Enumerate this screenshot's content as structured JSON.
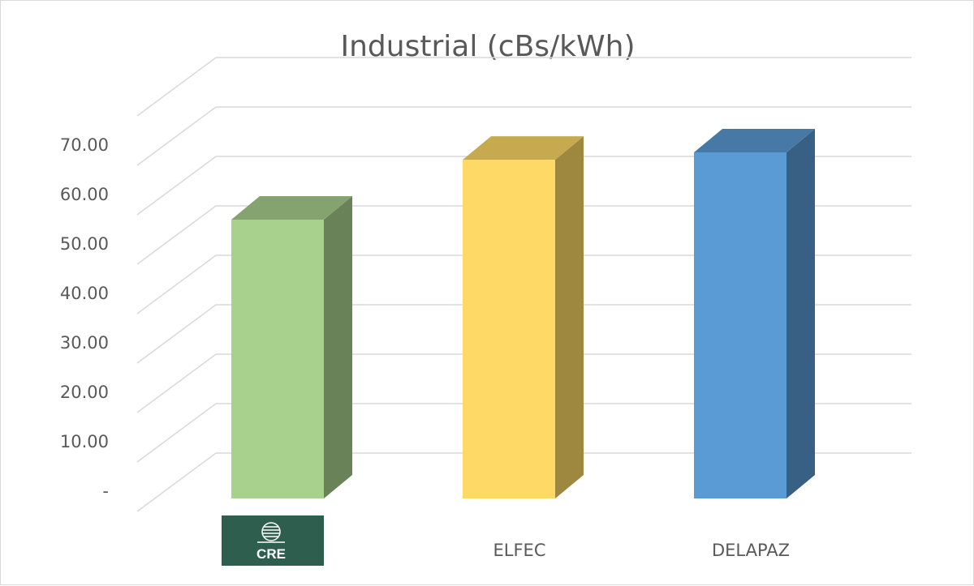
{
  "chart_data": {
    "type": "bar",
    "title": "Industrial (cBs/kWh)",
    "categories": [
      "CRE",
      "ELFEC",
      "DELAPAZ"
    ],
    "category_labels_shown": [
      "",
      "ELFEC",
      "DELAPAZ"
    ],
    "series": [
      {
        "values": [
          56.4,
          68.5,
          70.0
        ]
      }
    ],
    "bar_colors": [
      "#a9d18e",
      "#ffd966",
      "#5b9bd5"
    ],
    "y_ticks": [
      "-",
      "10.00",
      "20.00",
      "30.00",
      "40.00",
      "50.00",
      "60.00",
      "70.00"
    ],
    "ylim": [
      0,
      80
    ],
    "grid": true,
    "legend": "none",
    "style": "3d-column",
    "first_category_logo": {
      "text": "CRE",
      "background": "#2e5e4e"
    }
  }
}
